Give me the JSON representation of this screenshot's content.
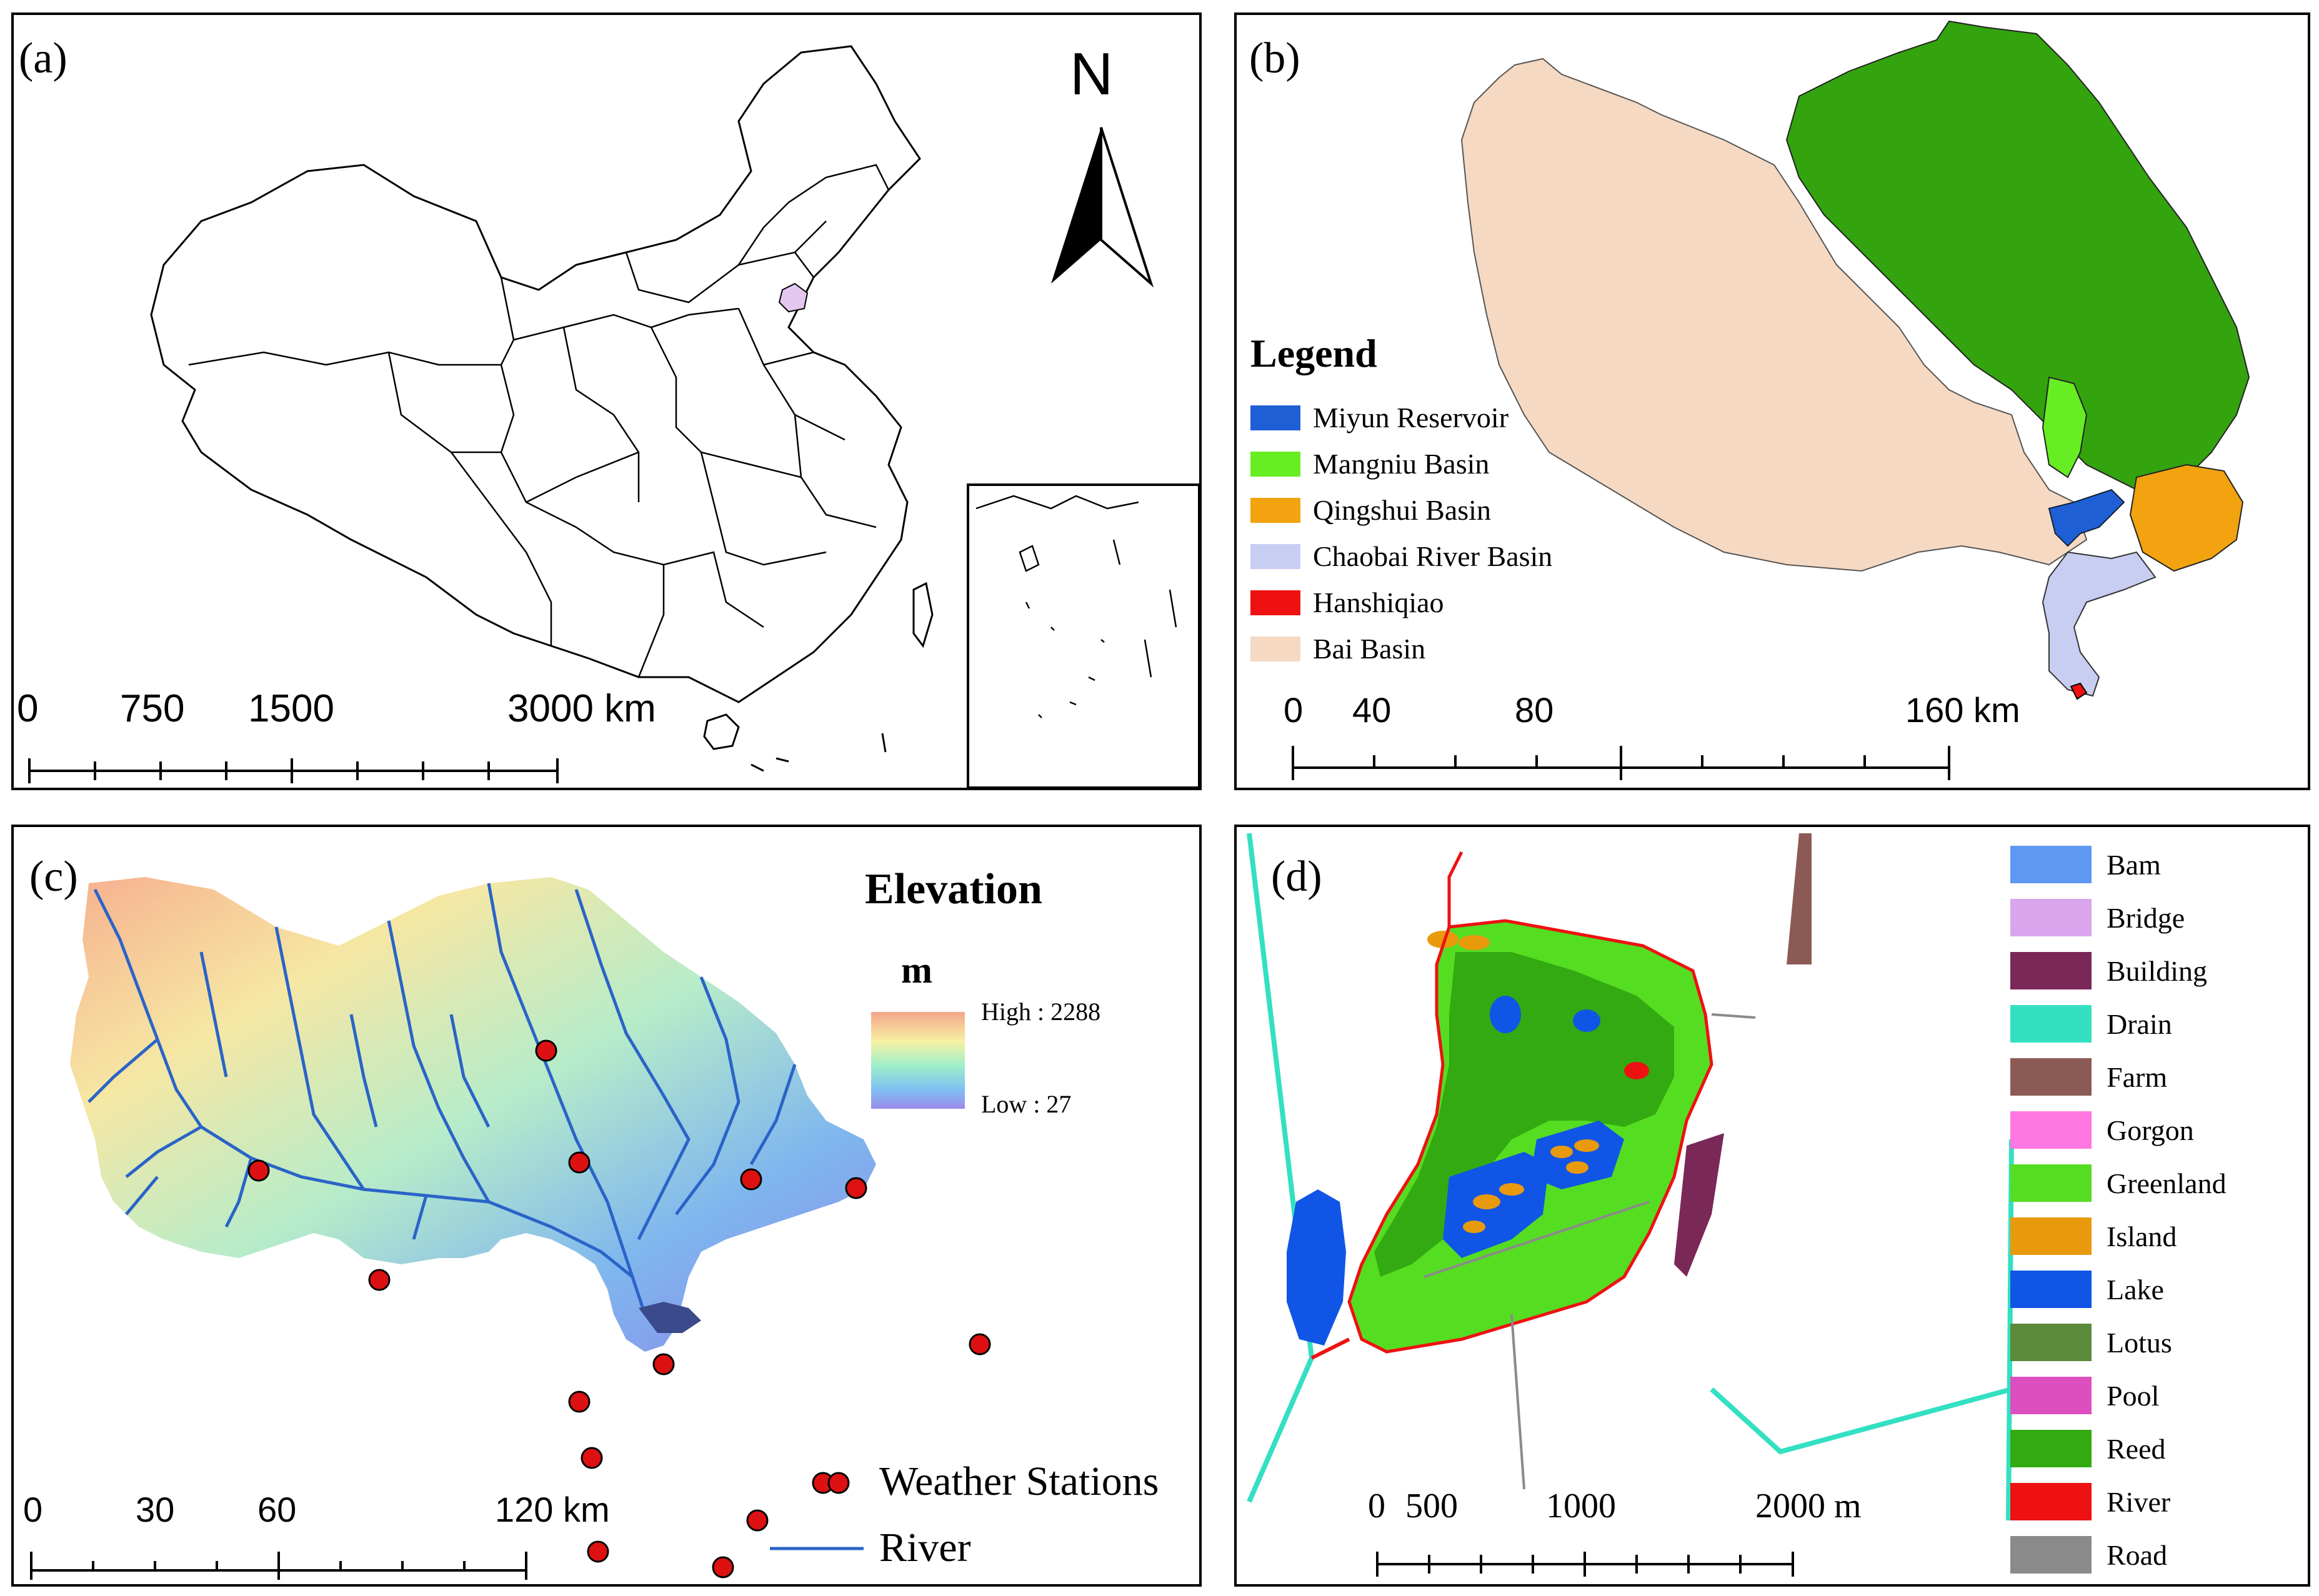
{
  "panel_a": {
    "tag": "(a)",
    "north": "N",
    "scale": [
      "0",
      "750",
      "1500",
      "3000 km"
    ]
  },
  "panel_b": {
    "tag": "(b)",
    "legend_title": "Legend",
    "legend": [
      {
        "label": "Miyun Reservoir",
        "color": "#1f5fd6"
      },
      {
        "label": "Mangniu Basin",
        "color": "#66ee22"
      },
      {
        "label": "Qingshui Basin",
        "color": "#f2a30f"
      },
      {
        "label": "Chaobai River Basin",
        "color": "#c8cdf2"
      },
      {
        "label": "Hanshiqiao",
        "color": "#ee1111"
      },
      {
        "label": "Bai Basin",
        "color": "#f5d9c3"
      }
    ],
    "scale": [
      "0",
      "40",
      "80",
      "160 km"
    ]
  },
  "panel_c": {
    "tag": "(c)",
    "title": "Elevation",
    "unit": "m",
    "high": "High : 2288",
    "low": "Low : 27",
    "legend": [
      {
        "label": "Weather Stations",
        "color": "#dd1111"
      },
      {
        "label": "River",
        "color": "#2a64c8"
      }
    ],
    "scale": [
      "0",
      "30",
      "60",
      "120 km"
    ]
  },
  "panel_d": {
    "tag": "(d)",
    "legend": [
      {
        "label": "Bam",
        "color": "#5e98f2"
      },
      {
        "label": "Bridge",
        "color": "#d9a6ee"
      },
      {
        "label": "Building",
        "color": "#7a2858"
      },
      {
        "label": "Drain",
        "color": "#33e0c2"
      },
      {
        "label": "Farm",
        "color": "#8c5a55"
      },
      {
        "label": "Gorgon",
        "color": "#ff77e0"
      },
      {
        "label": "Greenland",
        "color": "#55dd22"
      },
      {
        "label": "Island",
        "color": "#e99a0c"
      },
      {
        "label": "Lake",
        "color": "#1155e6"
      },
      {
        "label": "Lotus",
        "color": "#5b8a3a"
      },
      {
        "label": "Pool",
        "color": "#dd4fbf"
      },
      {
        "label": "Reed",
        "color": "#33aa11"
      },
      {
        "label": "River",
        "color": "#ee1111"
      },
      {
        "label": "Road",
        "color": "#8a8a8a"
      }
    ],
    "scale": [
      "0",
      "500",
      "1000",
      "2000 m"
    ]
  }
}
